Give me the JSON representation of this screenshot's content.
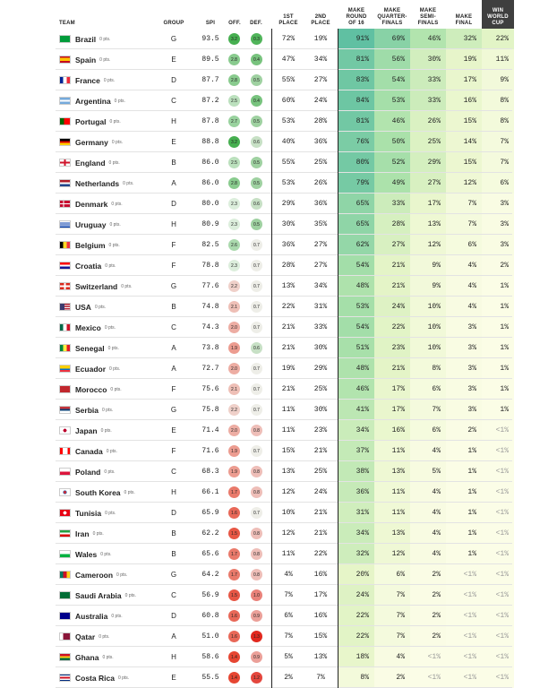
{
  "headers": {
    "team": "TEAM",
    "group": "GROUP",
    "spi": "SPI",
    "off": "OFF.",
    "def": "DEF.",
    "first": "1ST\nPLACE",
    "second": "2ND\nPLACE",
    "r16": "MAKE\nROUND\nOF 16",
    "qf": "MAKE\nQUARTER-\nFINALS",
    "sf": "MAKE\nSEMI-\nFINALS",
    "final": "MAKE\nFINAL",
    "win": "WIN\nWORLD\nCUP"
  },
  "teams": [
    {
      "name": "Brazil",
      "pts": "0 pts.",
      "group": "G",
      "spi": "93.5",
      "off": "3.2",
      "def": "0.3",
      "first": "72%",
      "second": "19%",
      "r16": "91%",
      "qf": "69%",
      "sf": "46%",
      "final": "32%",
      "win": "22%"
    },
    {
      "name": "Spain",
      "pts": "0 pts.",
      "group": "E",
      "spi": "89.5",
      "off": "2.8",
      "def": "0.4",
      "first": "47%",
      "second": "34%",
      "r16": "81%",
      "qf": "56%",
      "sf": "30%",
      "final": "19%",
      "win": "11%"
    },
    {
      "name": "France",
      "pts": "0 pts.",
      "group": "D",
      "spi": "87.7",
      "off": "2.8",
      "def": "0.5",
      "first": "55%",
      "second": "27%",
      "r16": "83%",
      "qf": "54%",
      "sf": "33%",
      "final": "17%",
      "win": "9%"
    },
    {
      "name": "Argentina",
      "pts": "0 pts.",
      "group": "C",
      "spi": "87.2",
      "off": "2.5",
      "def": "0.4",
      "first": "60%",
      "second": "24%",
      "r16": "84%",
      "qf": "53%",
      "sf": "33%",
      "final": "16%",
      "win": "8%"
    },
    {
      "name": "Portugal",
      "pts": "0 pts.",
      "group": "H",
      "spi": "87.8",
      "off": "2.7",
      "def": "0.5",
      "first": "53%",
      "second": "28%",
      "r16": "81%",
      "qf": "46%",
      "sf": "26%",
      "final": "15%",
      "win": "8%"
    },
    {
      "name": "Germany",
      "pts": "0 pts.",
      "group": "E",
      "spi": "88.8",
      "off": "3.2",
      "def": "0.6",
      "first": "40%",
      "second": "36%",
      "r16": "76%",
      "qf": "50%",
      "sf": "25%",
      "final": "14%",
      "win": "7%"
    },
    {
      "name": "England",
      "pts": "0 pts.",
      "group": "B",
      "spi": "86.0",
      "off": "2.5",
      "def": "0.5",
      "first": "55%",
      "second": "25%",
      "r16": "80%",
      "qf": "52%",
      "sf": "29%",
      "final": "15%",
      "win": "7%"
    },
    {
      "name": "Netherlands",
      "pts": "0 pts.",
      "group": "A",
      "spi": "86.0",
      "off": "2.8",
      "def": "0.5",
      "first": "53%",
      "second": "26%",
      "r16": "79%",
      "qf": "49%",
      "sf": "27%",
      "final": "12%",
      "win": "6%"
    },
    {
      "name": "Denmark",
      "pts": "0 pts.",
      "group": "D",
      "spi": "80.0",
      "off": "2.3",
      "def": "0.6",
      "first": "29%",
      "second": "36%",
      "r16": "65%",
      "qf": "33%",
      "sf": "17%",
      "final": "7%",
      "win": "3%"
    },
    {
      "name": "Uruguay",
      "pts": "0 pts.",
      "group": "H",
      "spi": "80.9",
      "off": "2.3",
      "def": "0.5",
      "first": "30%",
      "second": "35%",
      "r16": "65%",
      "qf": "28%",
      "sf": "13%",
      "final": "7%",
      "win": "3%"
    },
    {
      "name": "Belgium",
      "pts": "0 pts.",
      "group": "F",
      "spi": "82.5",
      "off": "2.6",
      "def": "0.7",
      "first": "36%",
      "second": "27%",
      "r16": "62%",
      "qf": "27%",
      "sf": "12%",
      "final": "6%",
      "win": "3%"
    },
    {
      "name": "Croatia",
      "pts": "0 pts.",
      "group": "F",
      "spi": "78.8",
      "off": "2.3",
      "def": "0.7",
      "first": "28%",
      "second": "27%",
      "r16": "54%",
      "qf": "21%",
      "sf": "9%",
      "final": "4%",
      "win": "2%"
    },
    {
      "name": "Switzerland",
      "pts": "0 pts.",
      "group": "G",
      "spi": "77.6",
      "off": "2.2",
      "def": "0.7",
      "first": "13%",
      "second": "34%",
      "r16": "48%",
      "qf": "21%",
      "sf": "9%",
      "final": "4%",
      "win": "1%"
    },
    {
      "name": "USA",
      "pts": "0 pts.",
      "group": "B",
      "spi": "74.8",
      "off": "2.1",
      "def": "0.7",
      "first": "22%",
      "second": "31%",
      "r16": "53%",
      "qf": "24%",
      "sf": "10%",
      "final": "4%",
      "win": "1%"
    },
    {
      "name": "Mexico",
      "pts": "0 pts.",
      "group": "C",
      "spi": "74.3",
      "off": "2.0",
      "def": "0.7",
      "first": "21%",
      "second": "33%",
      "r16": "54%",
      "qf": "22%",
      "sf": "10%",
      "final": "3%",
      "win": "1%"
    },
    {
      "name": "Senegal",
      "pts": "0 pts.",
      "group": "A",
      "spi": "73.8",
      "off": "1.9",
      "def": "0.6",
      "first": "21%",
      "second": "30%",
      "r16": "51%",
      "qf": "23%",
      "sf": "10%",
      "final": "3%",
      "win": "1%"
    },
    {
      "name": "Ecuador",
      "pts": "0 pts.",
      "group": "A",
      "spi": "72.7",
      "off": "2.0",
      "def": "0.7",
      "first": "19%",
      "second": "29%",
      "r16": "48%",
      "qf": "21%",
      "sf": "8%",
      "final": "3%",
      "win": "1%"
    },
    {
      "name": "Morocco",
      "pts": "0 pts.",
      "group": "F",
      "spi": "75.6",
      "off": "2.1",
      "def": "0.7",
      "first": "21%",
      "second": "25%",
      "r16": "46%",
      "qf": "17%",
      "sf": "6%",
      "final": "3%",
      "win": "1%"
    },
    {
      "name": "Serbia",
      "pts": "0 pts.",
      "group": "G",
      "spi": "75.8",
      "off": "2.2",
      "def": "0.7",
      "first": "11%",
      "second": "30%",
      "r16": "41%",
      "qf": "17%",
      "sf": "7%",
      "final": "3%",
      "win": "1%"
    },
    {
      "name": "Japan",
      "pts": "0 pts.",
      "group": "E",
      "spi": "71.4",
      "off": "2.0",
      "def": "0.8",
      "first": "11%",
      "second": "23%",
      "r16": "34%",
      "qf": "16%",
      "sf": "6%",
      "final": "2%",
      "win": "<1%"
    },
    {
      "name": "Canada",
      "pts": "0 pts.",
      "group": "F",
      "spi": "71.6",
      "off": "1.9",
      "def": "0.7",
      "first": "15%",
      "second": "21%",
      "r16": "37%",
      "qf": "11%",
      "sf": "4%",
      "final": "1%",
      "win": "<1%"
    },
    {
      "name": "Poland",
      "pts": "0 pts.",
      "group": "C",
      "spi": "68.3",
      "off": "1.9",
      "def": "0.8",
      "first": "13%",
      "second": "25%",
      "r16": "38%",
      "qf": "13%",
      "sf": "5%",
      "final": "1%",
      "win": "<1%"
    },
    {
      "name": "South Korea",
      "pts": "0 pts.",
      "group": "H",
      "spi": "66.1",
      "off": "1.7",
      "def": "0.8",
      "first": "12%",
      "second": "24%",
      "r16": "36%",
      "qf": "11%",
      "sf": "4%",
      "final": "1%",
      "win": "<1%"
    },
    {
      "name": "Tunisia",
      "pts": "0 pts.",
      "group": "D",
      "spi": "65.9",
      "off": "1.6",
      "def": "0.7",
      "first": "10%",
      "second": "21%",
      "r16": "31%",
      "qf": "11%",
      "sf": "4%",
      "final": "1%",
      "win": "<1%"
    },
    {
      "name": "Iran",
      "pts": "0 pts.",
      "group": "B",
      "spi": "62.2",
      "off": "1.5",
      "def": "0.8",
      "first": "12%",
      "second": "21%",
      "r16": "34%",
      "qf": "13%",
      "sf": "4%",
      "final": "1%",
      "win": "<1%"
    },
    {
      "name": "Wales",
      "pts": "0 pts.",
      "group": "B",
      "spi": "65.6",
      "off": "1.7",
      "def": "0.8",
      "first": "11%",
      "second": "22%",
      "r16": "32%",
      "qf": "12%",
      "sf": "4%",
      "final": "1%",
      "win": "<1%"
    },
    {
      "name": "Cameroon",
      "pts": "0 pts.",
      "group": "G",
      "spi": "64.2",
      "off": "1.7",
      "def": "0.8",
      "first": "4%",
      "second": "16%",
      "r16": "20%",
      "qf": "6%",
      "sf": "2%",
      "final": "<1%",
      "win": "<1%"
    },
    {
      "name": "Saudi Arabia",
      "pts": "0 pts.",
      "group": "C",
      "spi": "56.9",
      "off": "1.5",
      "def": "1.0",
      "first": "7%",
      "second": "17%",
      "r16": "24%",
      "qf": "7%",
      "sf": "2%",
      "final": "<1%",
      "win": "<1%"
    },
    {
      "name": "Australia",
      "pts": "0 pts.",
      "group": "D",
      "spi": "60.8",
      "off": "1.6",
      "def": "0.9",
      "first": "6%",
      "second": "16%",
      "r16": "22%",
      "qf": "7%",
      "sf": "2%",
      "final": "<1%",
      "win": "<1%"
    },
    {
      "name": "Qatar",
      "pts": "0 pts.",
      "group": "A",
      "spi": "51.0",
      "off": "1.6",
      "def": "1.3",
      "first": "7%",
      "second": "15%",
      "r16": "22%",
      "qf": "7%",
      "sf": "2%",
      "final": "<1%",
      "win": "<1%"
    },
    {
      "name": "Ghana",
      "pts": "0 pts.",
      "group": "H",
      "spi": "58.6",
      "off": "1.4",
      "def": "0.9",
      "first": "5%",
      "second": "13%",
      "r16": "18%",
      "qf": "4%",
      "sf": "<1%",
      "final": "<1%",
      "win": "<1%"
    },
    {
      "name": "Costa Rica",
      "pts": "0 pts.",
      "group": "E",
      "spi": "55.5",
      "off": "1.4",
      "def": "1.2",
      "first": "2%",
      "second": "7%",
      "r16": "8%",
      "qf": "2%",
      "sf": "<1%",
      "final": "<1%",
      "win": "<1%"
    }
  ]
}
